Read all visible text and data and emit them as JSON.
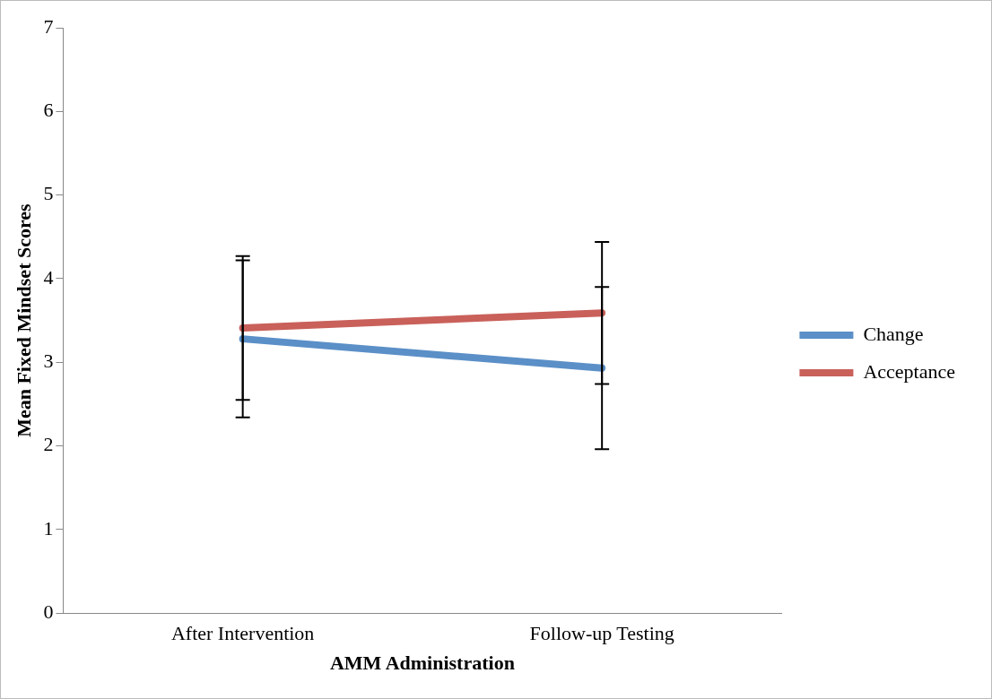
{
  "chart_data": {
    "type": "line",
    "xlabel": "AMM Administration",
    "ylabel": "Mean Fixed Mindset Scores",
    "categories": [
      "After Intervention",
      "Follow-up Testing"
    ],
    "series": [
      {
        "name": "Change",
        "color": "#5b8fc7",
        "values": [
          3.28,
          2.93
        ],
        "errors": [
          0.94,
          0.97
        ]
      },
      {
        "name": "Acceptance",
        "color": "#c9605a",
        "values": [
          3.41,
          3.59
        ],
        "errors": [
          0.86,
          0.85
        ]
      }
    ],
    "ylim": [
      0,
      7
    ],
    "yticks": [
      0,
      1,
      2,
      3,
      4,
      5,
      6,
      7
    ],
    "grid": false,
    "legend": "right",
    "marker": "none",
    "line_style": "solid"
  }
}
